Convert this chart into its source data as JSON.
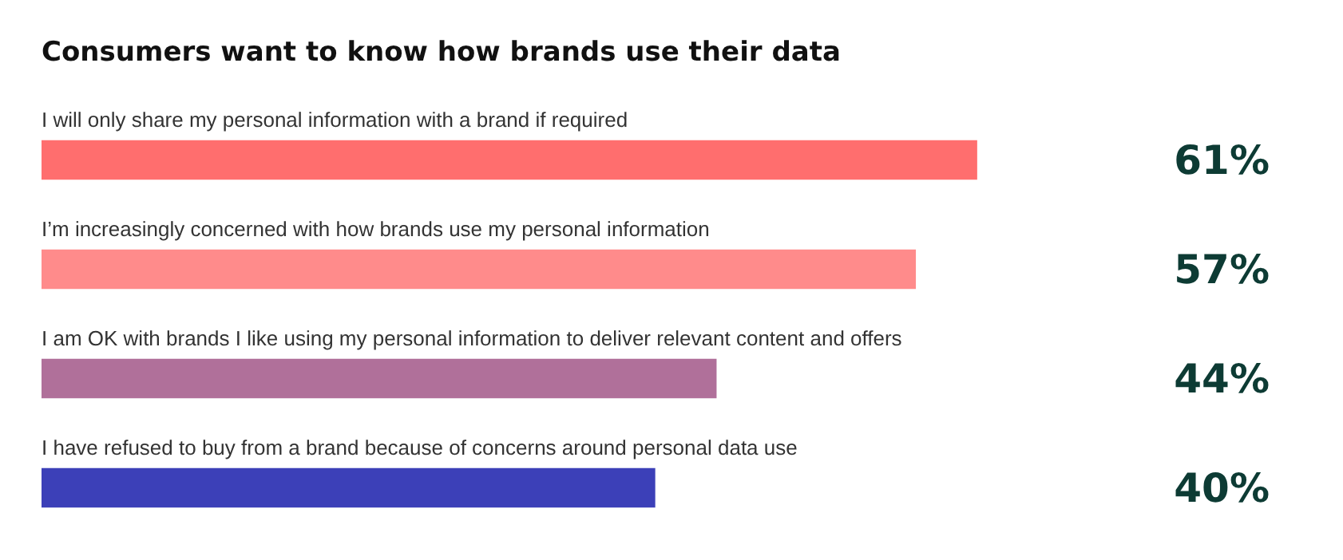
{
  "chart_data": {
    "type": "bar",
    "orientation": "horizontal",
    "title": "Consumers want to know how brands use their data",
    "categories": [
      "I will only share my personal information with a brand if required",
      "I’m increasingly concerned with how brands use my personal information",
      "I am OK with brands I like using my personal information to deliver relevant content and offers",
      "I have refused to buy from a brand because of concerns around personal data use"
    ],
    "values": [
      61,
      57,
      44,
      40
    ],
    "colors": [
      "#ff6e6e",
      "#ff8b8b",
      "#b0709a",
      "#3c40b8"
    ],
    "value_labels": [
      "61%",
      "57%",
      "44%",
      "40%"
    ],
    "legend": false,
    "tick_labels": false
  }
}
